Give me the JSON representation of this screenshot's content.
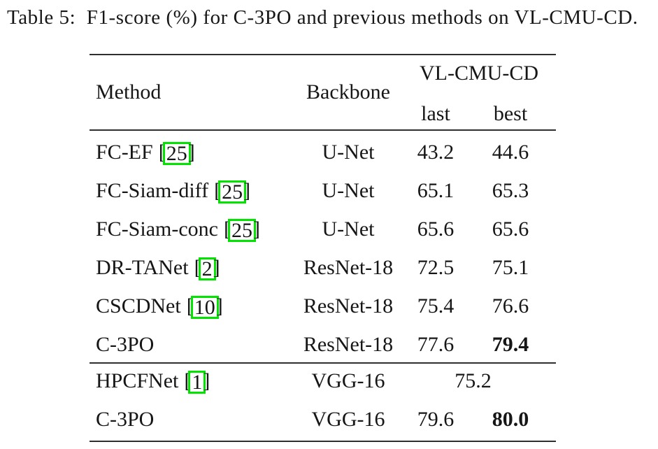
{
  "caption": "Table 5:  F1-score (%) for C-3PO and previous methods on VL-CMU-CD.",
  "colors": {
    "background": "#ffffff",
    "text": "#161616",
    "rule": "#2f2f2f",
    "citation_link_box": "#00e400"
  },
  "table": {
    "headers": {
      "method": "Method",
      "backbone": "Backbone",
      "dataset_group": "VL-CMU-CD",
      "sub_last": "last",
      "sub_best": "best"
    },
    "rows": [
      {
        "method": "FC-EF",
        "cite": "25",
        "backbone": "U-Net",
        "last": "43.2",
        "best": "44.6",
        "best_bold": false
      },
      {
        "method": "FC-Siam-diff",
        "cite": "25",
        "backbone": "U-Net",
        "last": "65.1",
        "best": "65.3",
        "best_bold": false
      },
      {
        "method": "FC-Siam-conc",
        "cite": "25",
        "backbone": "U-Net",
        "last": "65.6",
        "best": "65.6",
        "best_bold": false
      },
      {
        "method": "DR-TANet",
        "cite": "2",
        "backbone": "ResNet-18",
        "last": "72.5",
        "best": "75.1",
        "best_bold": false
      },
      {
        "method": "CSCDNet",
        "cite": "10",
        "backbone": "ResNet-18",
        "last": "75.4",
        "best": "76.6",
        "best_bold": false
      },
      {
        "method": "C-3PO",
        "cite": "",
        "backbone": "ResNet-18",
        "last": "77.6",
        "best": "79.4",
        "best_bold": true
      }
    ],
    "rows_vgg": [
      {
        "method": "HPCFNet",
        "cite": "1",
        "backbone": "VGG-16",
        "merged": "75.2"
      },
      {
        "method": "C-3PO",
        "cite": "",
        "backbone": "VGG-16",
        "last": "79.6",
        "best": "80.0",
        "best_bold": true
      }
    ]
  }
}
